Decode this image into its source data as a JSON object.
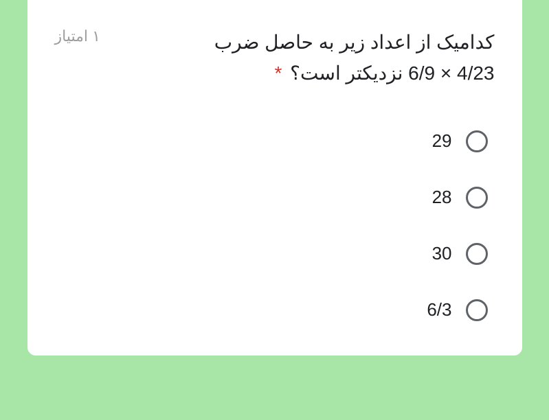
{
  "card": {
    "background_color": "#ffffff",
    "border_radius": 12
  },
  "page_background": "#a8e6a8",
  "question": {
    "line1": "کدامیک از اعداد زیر به حاصل ضرب",
    "line2_text": "نزدیکتر است؟",
    "expression": "6/9 × 4/23",
    "required": true,
    "required_color": "#d93025",
    "text_color": "#202124",
    "font_size": 28
  },
  "points": {
    "label": "۱ امتیاز",
    "color": "#9e9e9e",
    "font_size": 22
  },
  "options": [
    {
      "label": "29"
    },
    {
      "label": "28"
    },
    {
      "label": "30"
    },
    {
      "label": "6/3"
    }
  ],
  "radio": {
    "border_color": "#5f6368",
    "size": 32,
    "border_width": 3
  }
}
